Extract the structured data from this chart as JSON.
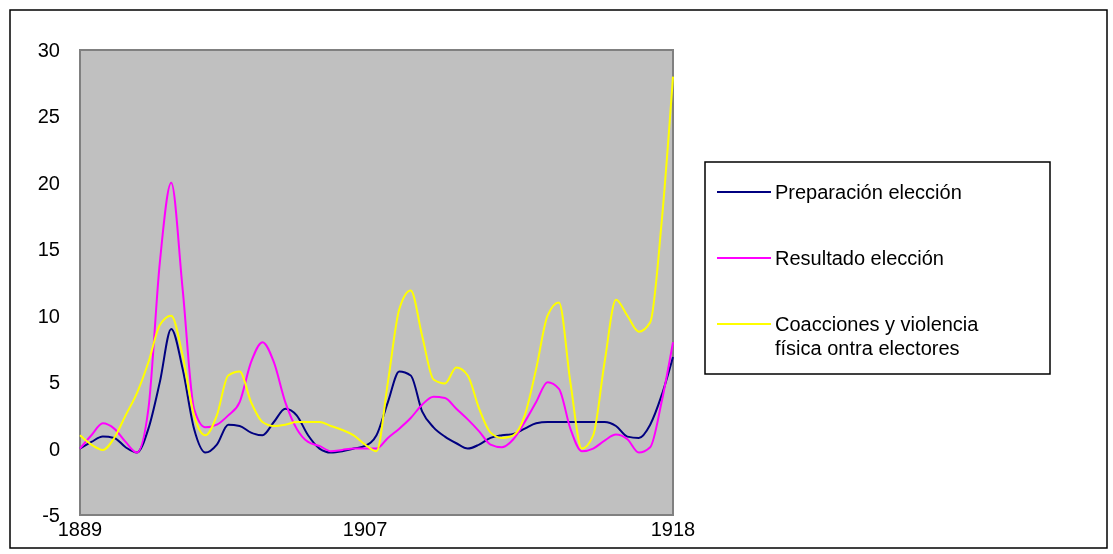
{
  "chart_data": {
    "type": "line",
    "categories": [
      "1889",
      null,
      null,
      null,
      null,
      null,
      null,
      null,
      null,
      null,
      null,
      null,
      null,
      null,
      null,
      null,
      null,
      null,
      null,
      null,
      null,
      null,
      null,
      null,
      null,
      "1907",
      null,
      null,
      null,
      null,
      null,
      null,
      null,
      null,
      null,
      null,
      null,
      null,
      null,
      null,
      null,
      null,
      null,
      null,
      null,
      null,
      null,
      null,
      null,
      null,
      null,
      null,
      "1918"
    ],
    "ylim": [
      -5,
      30
    ],
    "yticks": [
      -5,
      0,
      5,
      10,
      15,
      20,
      25,
      30
    ],
    "legend": "right",
    "marker": "none",
    "line_style": "solid",
    "grid": false,
    "series": [
      {
        "name": "Preparación elección",
        "color": "#000080",
        "values": [
          0,
          0.5,
          0.9,
          0.8,
          0.1,
          -0.3,
          1.5,
          5,
          9,
          6,
          1.5,
          -0.3,
          0.3,
          1.8,
          1.7,
          1.2,
          1,
          2,
          3,
          2.5,
          1,
          0,
          -0.3,
          -0.2,
          0,
          0.2,
          1,
          3.5,
          5.8,
          5.5,
          2.8,
          1.6,
          0.9,
          0.4,
          0,
          0.3,
          0.8,
          1,
          1.1,
          1.5,
          1.9,
          2,
          2,
          2,
          2,
          2,
          2,
          1.7,
          0.9,
          0.8,
          1.8,
          4,
          6.9
        ]
      },
      {
        "name": "Resultado elección",
        "color": "#ff00ff",
        "values": [
          0,
          1,
          1.9,
          1.5,
          0.5,
          -0.3,
          3,
          14,
          20,
          12,
          3,
          1.6,
          1.8,
          2.5,
          3.5,
          6.5,
          8,
          6.5,
          3.5,
          1.5,
          0.5,
          0.2,
          -0.2,
          -0.1,
          0,
          0,
          0,
          0.8,
          1.5,
          2.3,
          3.3,
          3.9,
          3.8,
          3,
          2.2,
          1.3,
          0.3,
          0.1,
          0.7,
          2,
          3.5,
          5,
          4.5,
          1.5,
          -0.2,
          0,
          0.6,
          1.05,
          0.7,
          -0.3,
          0.1,
          3.5,
          8
        ]
      },
      {
        "name": "Coacciones y violencia física ontra electores",
        "color": "#ffff00",
        "values": [
          1,
          0.3,
          -0.1,
          0.8,
          2.5,
          4.2,
          6.5,
          9.3,
          10,
          7,
          2.5,
          1,
          2.5,
          5.5,
          5.8,
          3.5,
          2,
          1.7,
          1.8,
          2,
          2,
          2,
          1.7,
          1.4,
          1,
          0.3,
          -0.2,
          5,
          10.5,
          11.9,
          8.5,
          5.2,
          4.9,
          6.1,
          5.5,
          3,
          1.2,
          0.8,
          1,
          2.5,
          6,
          10,
          11,
          5,
          0,
          1,
          6.5,
          11.2,
          10,
          8.8,
          9.5,
          17,
          28
        ]
      }
    ]
  }
}
